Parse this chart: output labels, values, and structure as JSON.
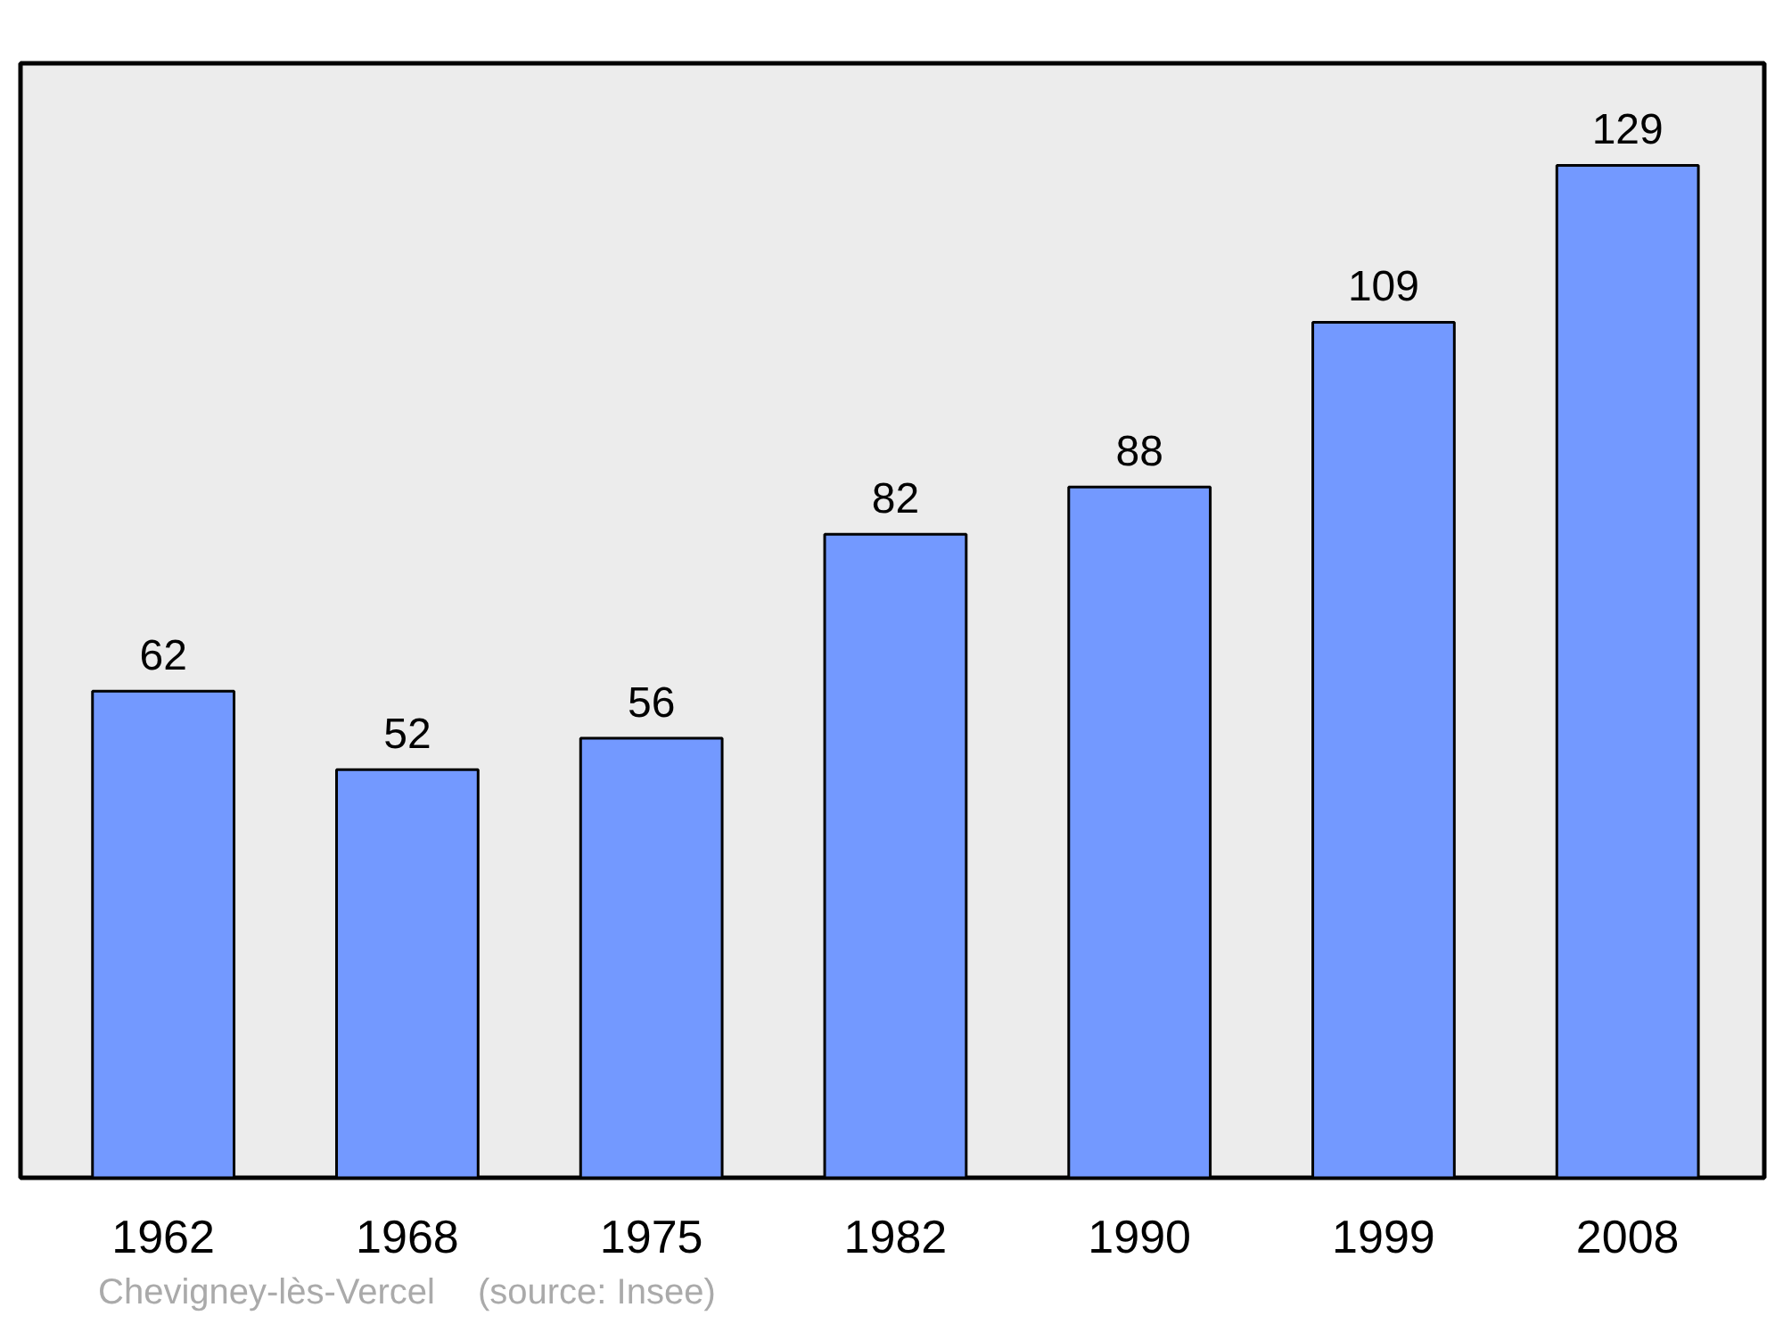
{
  "chart_data": {
    "type": "bar",
    "categories": [
      "1962",
      "1968",
      "1975",
      "1982",
      "1990",
      "1999",
      "2008"
    ],
    "values": [
      62,
      52,
      56,
      82,
      88,
      109,
      129
    ],
    "color": "#7399ff",
    "data_labels": true,
    "ylim": [
      0,
      142
    ],
    "tick_labels": "x",
    "grid": false,
    "annotations": [
      "Chevigney-lès-Vercel",
      "(source: Insee)"
    ]
  }
}
